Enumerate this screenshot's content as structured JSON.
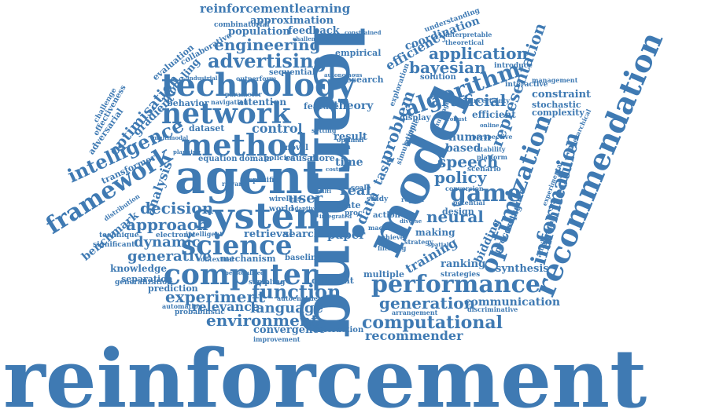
{
  "colors": {
    "primary": "#3f7ab3",
    "background": "#ffffff"
  },
  "words": [
    {
      "text": "reinforcement"
    },
    {
      "text": "learning"
    },
    {
      "text": "model"
    },
    {
      "text": "agent"
    },
    {
      "text": "system"
    },
    {
      "text": "technology"
    },
    {
      "text": "method"
    },
    {
      "text": "network"
    },
    {
      "text": "science"
    },
    {
      "text": "computer"
    },
    {
      "text": "recommendation"
    },
    {
      "text": "performance"
    },
    {
      "text": "optimization"
    },
    {
      "text": "framework"
    },
    {
      "text": "intelligence"
    },
    {
      "text": "game"
    },
    {
      "text": "algorithm"
    },
    {
      "text": "information"
    },
    {
      "text": "environment"
    },
    {
      "text": "computational"
    },
    {
      "text": "generation"
    },
    {
      "text": "experiment"
    },
    {
      "text": "function"
    },
    {
      "text": "advertising"
    },
    {
      "text": "engineering"
    },
    {
      "text": "approach"
    },
    {
      "text": "decision"
    },
    {
      "text": "application"
    },
    {
      "text": "bayesian"
    },
    {
      "text": "speech"
    },
    {
      "text": "policy"
    },
    {
      "text": "neural"
    },
    {
      "text": "architecture"
    },
    {
      "text": "representation"
    },
    {
      "text": "problem"
    },
    {
      "text": "artificial"
    },
    {
      "text": "language"
    },
    {
      "text": "relevance"
    },
    {
      "text": "recommender"
    },
    {
      "text": "communication"
    },
    {
      "text": "dynamic"
    },
    {
      "text": "generative"
    },
    {
      "text": "analysis"
    },
    {
      "text": "user"
    },
    {
      "text": "real"
    },
    {
      "text": "data"
    },
    {
      "text": "task"
    },
    {
      "text": "time"
    },
    {
      "text": "control"
    },
    {
      "text": "reinforcementlearning"
    },
    {
      "text": "approximation"
    },
    {
      "text": "population"
    },
    {
      "text": "feedback"
    },
    {
      "text": "optimisation"
    },
    {
      "text": "efficiency"
    },
    {
      "text": "coordination"
    },
    {
      "text": "theory"
    },
    {
      "text": "human"
    },
    {
      "text": "based"
    },
    {
      "text": "paper"
    },
    {
      "text": "retrieval"
    },
    {
      "text": "search"
    },
    {
      "text": "training"
    },
    {
      "text": "ranking"
    },
    {
      "text": "synthesis"
    },
    {
      "text": "convergence"
    },
    {
      "text": "interaction"
    },
    {
      "text": "benchmark"
    },
    {
      "text": "knowledge"
    },
    {
      "text": "separation"
    },
    {
      "text": "prediction"
    },
    {
      "text": "generalization"
    },
    {
      "text": "dataset"
    },
    {
      "text": "result"
    },
    {
      "text": "attention"
    },
    {
      "text": "gradient"
    },
    {
      "text": "transformer"
    },
    {
      "text": "adversarial"
    },
    {
      "text": "modeling"
    },
    {
      "text": "evaluation"
    },
    {
      "text": "collaborative"
    },
    {
      "text": "combinatorial"
    },
    {
      "text": "empirical"
    },
    {
      "text": "constraint"
    },
    {
      "text": "efficient"
    },
    {
      "text": "stochastic"
    },
    {
      "text": "complexity"
    },
    {
      "text": "bidding"
    },
    {
      "text": "sequence"
    },
    {
      "text": "processing"
    },
    {
      "text": "making"
    },
    {
      "text": "design"
    },
    {
      "text": "multiple"
    },
    {
      "text": "different"
    },
    {
      "text": "strategies"
    },
    {
      "text": "mechanism"
    },
    {
      "text": "baseline"
    },
    {
      "text": "significant"
    },
    {
      "text": "technique"
    },
    {
      "text": "electronic"
    },
    {
      "text": "intelligent"
    },
    {
      "text": "sampling"
    },
    {
      "text": "autoencoder"
    },
    {
      "text": "probabilistic"
    },
    {
      "text": "automation"
    },
    {
      "text": "improvement"
    },
    {
      "text": "contextual"
    },
    {
      "text": "distribution"
    },
    {
      "text": "challenge"
    },
    {
      "text": "effectiveness"
    },
    {
      "text": "behavior"
    },
    {
      "text": "research"
    },
    {
      "text": "feature"
    },
    {
      "text": "display"
    },
    {
      "text": "scenario"
    },
    {
      "text": "solution"
    },
    {
      "text": "understanding"
    },
    {
      "text": "interpretable"
    },
    {
      "text": "theoretical"
    },
    {
      "text": "introduce"
    },
    {
      "text": "interactive"
    },
    {
      "text": "management"
    },
    {
      "text": "experimental"
    },
    {
      "text": "attribution"
    },
    {
      "text": "discriminative"
    },
    {
      "text": "arrangement"
    },
    {
      "text": "sequential"
    },
    {
      "text": "outperform"
    },
    {
      "text": "parameter"
    },
    {
      "text": "navigation"
    },
    {
      "text": "equation"
    },
    {
      "text": "domain"
    },
    {
      "text": "policies"
    },
    {
      "text": "causal"
    },
    {
      "text": "more"
    },
    {
      "text": "reward"
    },
    {
      "text": "specific"
    },
    {
      "text": "wireless"
    },
    {
      "text": "world"
    },
    {
      "text": "novel"
    },
    {
      "text": "graph"
    },
    {
      "text": "optimal"
    },
    {
      "text": "scale"
    },
    {
      "text": "state"
    },
    {
      "text": "study"
    },
    {
      "text": "action"
    },
    {
      "text": "region"
    },
    {
      "text": "stability"
    },
    {
      "text": "platform"
    },
    {
      "text": "perspective"
    },
    {
      "text": "potential"
    },
    {
      "text": "conversion"
    },
    {
      "text": "exploration"
    },
    {
      "text": "simulation"
    },
    {
      "text": "multiagent"
    },
    {
      "text": "sample"
    },
    {
      "text": "strategy"
    },
    {
      "text": "achieve"
    },
    {
      "text": "filtering"
    },
    {
      "text": "hierarchical"
    },
    {
      "text": "uncertainty"
    },
    {
      "text": "setting"
    },
    {
      "text": "challenging"
    },
    {
      "text": "constrained"
    },
    {
      "text": "autonomous"
    },
    {
      "text": "industrial"
    },
    {
      "text": "planning"
    },
    {
      "text": "multimodal"
    },
    {
      "text": "personalized"
    },
    {
      "text": "adaptive"
    },
    {
      "text": "integrated"
    },
    {
      "text": "machine"
    },
    {
      "text": "diverse"
    },
    {
      "text": "spatial"
    },
    {
      "text": "multi"
    },
    {
      "text": "cost"
    },
    {
      "text": "proc"
    },
    {
      "text": "robust"
    },
    {
      "text": "online"
    }
  ]
}
